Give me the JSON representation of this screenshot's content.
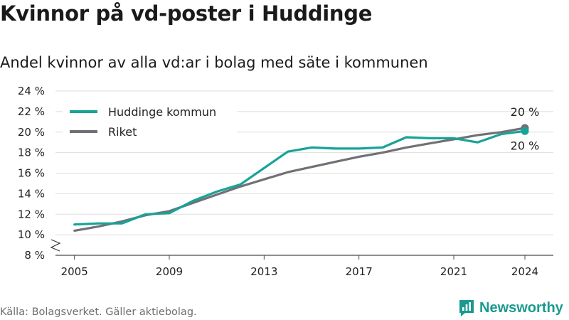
{
  "title": "Kvinnor på vd-poster i Huddinge",
  "subtitle": "Andel kvinnor av alla vd:ar i bolag med säte i kommunen",
  "source": "Källa: Bolagsverket. Gäller aktiebolag.",
  "brand": {
    "name": "Newsworthy",
    "color": "#1a9a8e"
  },
  "chart_data": {
    "type": "line",
    "x": [
      2005,
      2006,
      2007,
      2008,
      2009,
      2010,
      2011,
      2012,
      2013,
      2014,
      2015,
      2016,
      2017,
      2018,
      2019,
      2020,
      2021,
      2022,
      2023,
      2024
    ],
    "x_ticks": [
      2005,
      2009,
      2013,
      2017,
      2021,
      2024
    ],
    "y_ticks": [
      8,
      10,
      12,
      14,
      16,
      18,
      20,
      22,
      24
    ],
    "y_tick_labels": [
      "8 %",
      "10 %",
      "12 %",
      "14 %",
      "16 %",
      "18 %",
      "20 %",
      "22 %",
      "24 %"
    ],
    "ylim": [
      8,
      24
    ],
    "y_axis_break": true,
    "grid": "horizontal",
    "legend_position": "top-left",
    "series": [
      {
        "name": "Huddinge kommun",
        "color": "#17a398",
        "values": [
          11.0,
          11.1,
          11.1,
          12.0,
          12.1,
          13.3,
          14.2,
          14.9,
          16.5,
          18.1,
          18.5,
          18.4,
          18.4,
          18.5,
          19.5,
          19.4,
          19.4,
          19.0,
          19.8,
          20.1
        ],
        "end_label": "20 %"
      },
      {
        "name": "Riket",
        "color": "#717076",
        "values": [
          10.4,
          10.8,
          11.3,
          11.9,
          12.3,
          13.1,
          13.9,
          14.7,
          15.4,
          16.1,
          16.6,
          17.1,
          17.6,
          18.0,
          18.5,
          18.9,
          19.3,
          19.7,
          20.0,
          20.4
        ],
        "end_label": "20 %"
      }
    ]
  }
}
